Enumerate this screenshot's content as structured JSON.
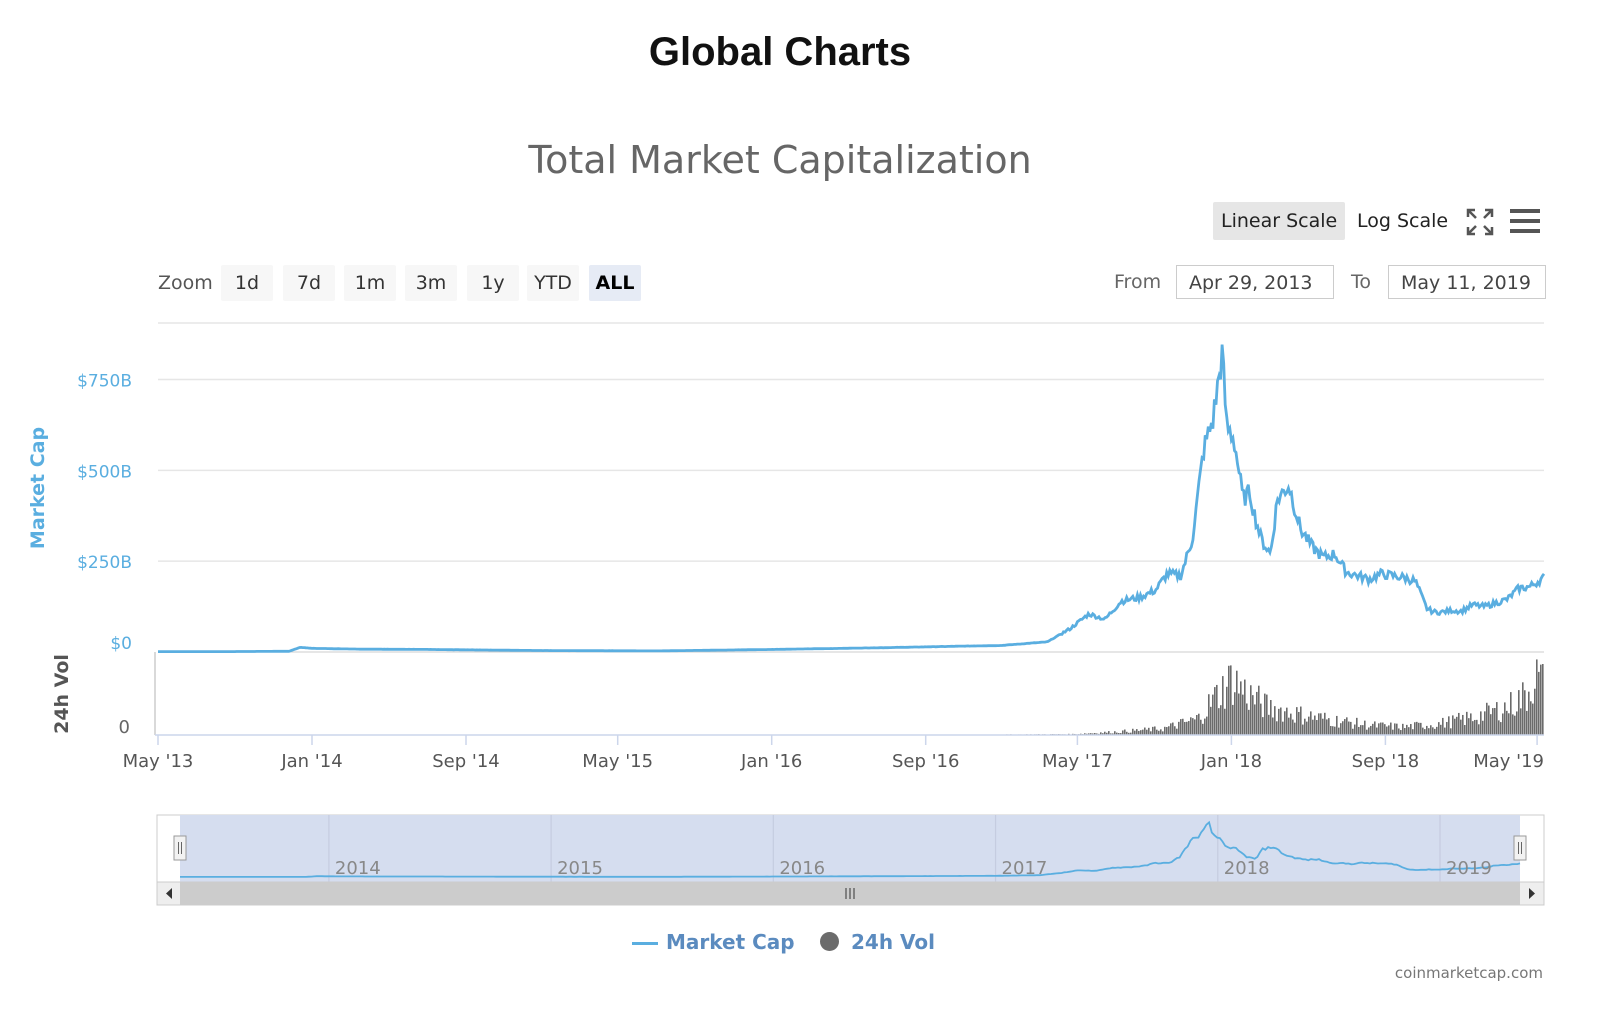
{
  "page_title": "Global Charts",
  "toolbar": {
    "linear_scale": "Linear Scale",
    "log_scale": "Log Scale",
    "fullscreen_icon": "fullscreen-icon",
    "menu_icon": "hamburger-menu-icon"
  },
  "zoom": {
    "label": "Zoom",
    "buttons": [
      "1d",
      "7d",
      "1m",
      "3m",
      "1y",
      "YTD",
      "ALL"
    ],
    "selected": "ALL"
  },
  "range": {
    "from_label": "From",
    "from_value": "Apr 29, 2013",
    "to_label": "To",
    "to_value": "May 11, 2019"
  },
  "chart_data": {
    "type": "line",
    "title": "Total Market Capitalization",
    "ylabel": "Market Cap",
    "y2label": "24h Vol",
    "ylim": [
      0,
      900
    ],
    "y_ticks": [
      "$0",
      "$250B",
      "$500B",
      "$750B"
    ],
    "y_tick_values": [
      0,
      250,
      500,
      750
    ],
    "vol_ticks": [
      "0"
    ],
    "x_ticks": [
      "May '13",
      "Jan '14",
      "Sep '14",
      "May '15",
      "Jan '16",
      "Sep '16",
      "May '17",
      "Jan '18",
      "Sep '18",
      "May '19"
    ],
    "x_tick_values": [
      2013.33,
      2014.0,
      2014.67,
      2015.33,
      2016.0,
      2016.67,
      2017.33,
      2018.0,
      2018.67,
      2019.33
    ],
    "xlim": [
      2013.33,
      2019.36
    ],
    "series": [
      {
        "name": "Market Cap",
        "color": "#5aaee0",
        "x": [
          2013.33,
          2013.6,
          2013.9,
          2013.95,
          2014.0,
          2014.2,
          2014.5,
          2015.0,
          2015.5,
          2016.0,
          2016.5,
          2016.9,
          2017.0,
          2017.2,
          2017.3,
          2017.38,
          2017.45,
          2017.52,
          2017.6,
          2017.67,
          2017.72,
          2017.78,
          2017.83,
          2017.88,
          2017.92,
          2017.96,
          2017.98,
          2018.01,
          2018.03,
          2018.05,
          2018.08,
          2018.1,
          2018.13,
          2018.17,
          2018.2,
          2018.25,
          2018.3,
          2018.35,
          2018.4,
          2018.45,
          2018.5,
          2018.55,
          2018.6,
          2018.65,
          2018.7,
          2018.75,
          2018.8,
          2018.85,
          2018.88,
          2018.92,
          2018.96,
          2019.0,
          2019.05,
          2019.1,
          2019.15,
          2019.2,
          2019.25,
          2019.3,
          2019.36
        ],
        "values": [
          1,
          1,
          2,
          13,
          10,
          8,
          7,
          4,
          3,
          7,
          12,
          17,
          18,
          28,
          65,
          105,
          90,
          140,
          150,
          170,
          215,
          210,
          310,
          560,
          640,
          820,
          620,
          590,
          510,
          420,
          440,
          380,
          310,
          270,
          420,
          460,
          340,
          290,
          260,
          270,
          220,
          210,
          200,
          215,
          210,
          205,
          195,
          120,
          110,
          110,
          115,
          112,
          130,
          125,
          135,
          145,
          175,
          180,
          205
        ]
      },
      {
        "name": "24h Vol",
        "color": "#6b6b6b",
        "x": [
          2013.33,
          2016.5,
          2017.0,
          2017.3,
          2017.5,
          2017.7,
          2017.85,
          2017.92,
          2018.0,
          2018.05,
          2018.15,
          2018.3,
          2018.45,
          2018.6,
          2018.75,
          2018.9,
          2019.05,
          2019.2,
          2019.28,
          2019.32,
          2019.36
        ],
        "values": [
          0.1,
          0.2,
          0.5,
          1,
          4,
          8,
          20,
          45,
          70,
          55,
          35,
          25,
          18,
          12,
          10,
          14,
          22,
          35,
          50,
          75,
          60
        ]
      }
    ],
    "navigator_labels": [
      "2014",
      "2015",
      "2016",
      "2017",
      "2018",
      "2019"
    ],
    "navigator_values": [
      2014,
      2015,
      2016,
      2017,
      2018,
      2019
    ],
    "grid": true,
    "legend_position": "bottom-center"
  },
  "credit": "coinmarketcap.com"
}
